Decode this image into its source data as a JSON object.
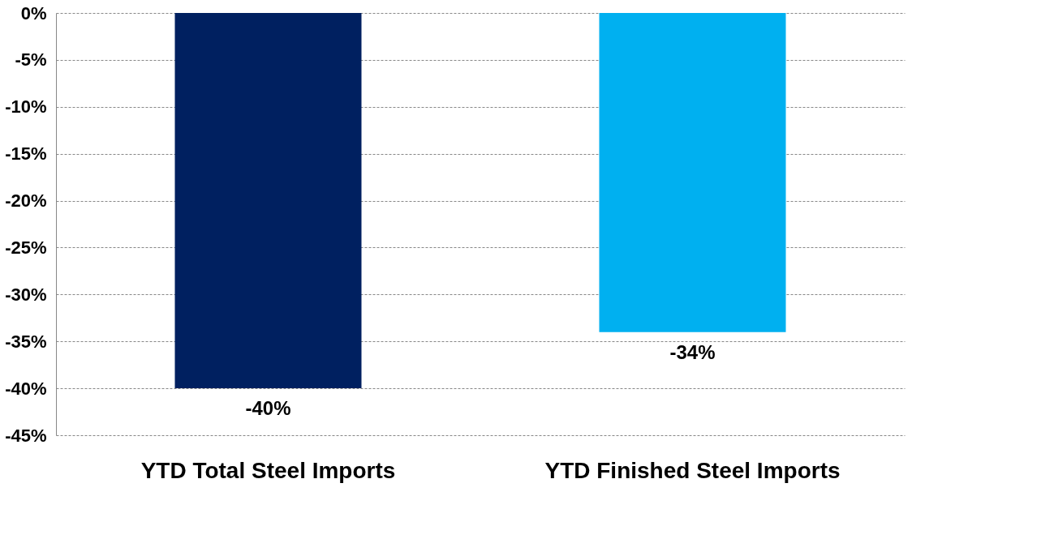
{
  "chart_data": {
    "type": "bar",
    "categories": [
      "YTD Total Steel Imports",
      "YTD Finished Steel Imports"
    ],
    "values": [
      -40,
      -34
    ],
    "colors": [
      "#002060",
      "#00b0f0"
    ],
    "value_labels": [
      "-40%",
      "-34%"
    ],
    "ylim": [
      -45,
      0
    ],
    "yticks": [
      {
        "value": 0,
        "label": "0%"
      },
      {
        "value": -5,
        "label": "-5%"
      },
      {
        "value": -10,
        "label": "-10%"
      },
      {
        "value": -15,
        "label": "-15%"
      },
      {
        "value": -20,
        "label": "-20%"
      },
      {
        "value": -25,
        "label": "-25%"
      },
      {
        "value": -30,
        "label": "-30%"
      },
      {
        "value": -35,
        "label": "-35%"
      },
      {
        "value": -40,
        "label": "-40%"
      },
      {
        "value": -45,
        "label": "-45%"
      }
    ],
    "grid": "y"
  }
}
